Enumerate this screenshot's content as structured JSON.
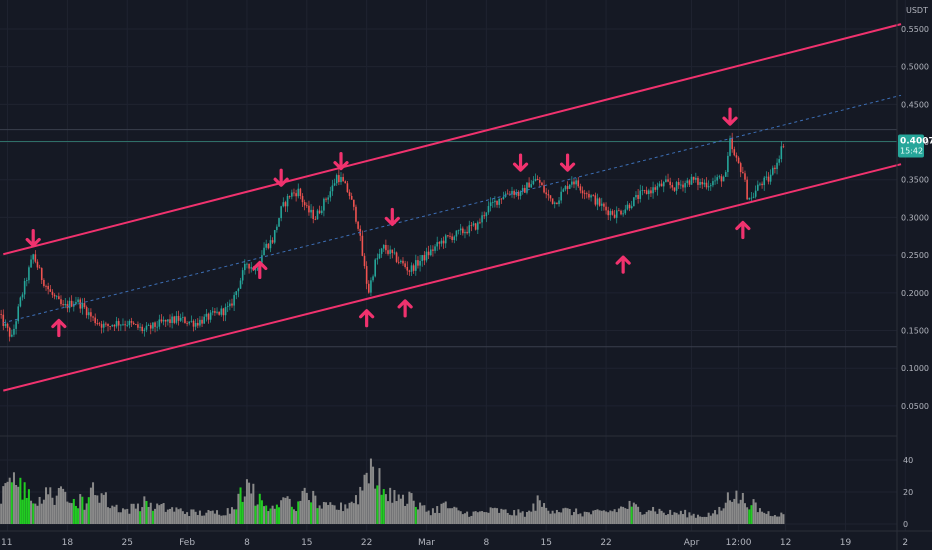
{
  "chart_data": {
    "type": "candlestick",
    "currency": "USDT",
    "y_ticks": [
      "0.5500",
      "0.5000",
      "0.4500",
      "0.4000",
      "0.3500",
      "0.3000",
      "0.2500",
      "0.2000",
      "0.1500",
      "0.1000",
      "0.0500"
    ],
    "y_values": [
      0.55,
      0.5,
      0.45,
      0.4,
      0.35,
      0.3,
      0.25,
      0.2,
      0.15,
      0.1,
      0.05
    ],
    "ylim": [
      0.0,
      0.57
    ],
    "x_ticks": [
      {
        "label": "11",
        "day": 11
      },
      {
        "label": "18",
        "day": 18
      },
      {
        "label": "25",
        "day": 25
      },
      {
        "label": "Feb",
        "day": 32
      },
      {
        "label": "8",
        "day": 39
      },
      {
        "label": "15",
        "day": 46
      },
      {
        "label": "22",
        "day": 53
      },
      {
        "label": "Mar",
        "day": 60
      },
      {
        "label": "8",
        "day": 67
      },
      {
        "label": "15",
        "day": 74
      },
      {
        "label": "22",
        "day": 81
      },
      {
        "label": "Apr",
        "day": 91
      },
      {
        "label": "12:00",
        "day": 96.5
      },
      {
        "label": "12",
        "day": 102
      },
      {
        "label": "19",
        "day": 109
      },
      {
        "label": "2",
        "day": 116
      }
    ],
    "current_price": {
      "label": "0.4007",
      "value": 0.4007,
      "countdown": "15:42"
    },
    "horizontal_levels": [
      0.4164,
      0.1284
    ],
    "channel": {
      "upper": [
        {
          "day": 10.5,
          "value": 0.2512
        },
        {
          "day": 115.5,
          "value": 0.5564
        }
      ],
      "lower": [
        {
          "day": 10.5,
          "value": 0.0703
        },
        {
          "day": 115.5,
          "value": 0.3706
        }
      ],
      "mid": [
        {
          "day": 10.5,
          "value": 0.1602
        },
        {
          "day": 115.5,
          "value": 0.462
        }
      ]
    },
    "price_path": [
      {
        "day": 10.0,
        "value": 0.17
      },
      {
        "day": 11.0,
        "value": 0.15
      },
      {
        "day": 11.5,
        "value": 0.14
      },
      {
        "day": 12.5,
        "value": 0.19
      },
      {
        "day": 14.0,
        "value": 0.25
      },
      {
        "day": 15.0,
        "value": 0.22
      },
      {
        "day": 16.0,
        "value": 0.2
      },
      {
        "day": 17.5,
        "value": 0.18
      },
      {
        "day": 19.0,
        "value": 0.19
      },
      {
        "day": 20.0,
        "value": 0.18
      },
      {
        "day": 21.0,
        "value": 0.165
      },
      {
        "day": 22.5,
        "value": 0.155
      },
      {
        "day": 23.5,
        "value": 0.16
      },
      {
        "day": 25.0,
        "value": 0.16
      },
      {
        "day": 27.0,
        "value": 0.15
      },
      {
        "day": 29.0,
        "value": 0.16
      },
      {
        "day": 31.0,
        "value": 0.165
      },
      {
        "day": 33.0,
        "value": 0.16
      },
      {
        "day": 35.0,
        "value": 0.17
      },
      {
        "day": 37.0,
        "value": 0.18
      },
      {
        "day": 38.0,
        "value": 0.21
      },
      {
        "day": 39.0,
        "value": 0.24
      },
      {
        "day": 40.0,
        "value": 0.23
      },
      {
        "day": 41.0,
        "value": 0.26
      },
      {
        "day": 42.0,
        "value": 0.27
      },
      {
        "day": 43.0,
        "value": 0.31
      },
      {
        "day": 44.0,
        "value": 0.33
      },
      {
        "day": 45.0,
        "value": 0.335
      },
      {
        "day": 46.0,
        "value": 0.31
      },
      {
        "day": 47.0,
        "value": 0.3
      },
      {
        "day": 48.0,
        "value": 0.32
      },
      {
        "day": 49.0,
        "value": 0.34
      },
      {
        "day": 49.5,
        "value": 0.355
      },
      {
        "day": 50.0,
        "value": 0.35
      },
      {
        "day": 51.0,
        "value": 0.33
      },
      {
        "day": 51.5,
        "value": 0.31
      },
      {
        "day": 52.0,
        "value": 0.29
      },
      {
        "day": 52.5,
        "value": 0.25
      },
      {
        "day": 53.2,
        "value": 0.2
      },
      {
        "day": 54.0,
        "value": 0.24
      },
      {
        "day": 55.0,
        "value": 0.26
      },
      {
        "day": 56.0,
        "value": 0.25
      },
      {
        "day": 57.0,
        "value": 0.24
      },
      {
        "day": 58.0,
        "value": 0.23
      },
      {
        "day": 59.0,
        "value": 0.24
      },
      {
        "day": 60.0,
        "value": 0.25
      },
      {
        "day": 61.0,
        "value": 0.26
      },
      {
        "day": 62.0,
        "value": 0.27
      },
      {
        "day": 63.0,
        "value": 0.275
      },
      {
        "day": 64.0,
        "value": 0.28
      },
      {
        "day": 65.0,
        "value": 0.285
      },
      {
        "day": 66.0,
        "value": 0.29
      },
      {
        "day": 67.0,
        "value": 0.31
      },
      {
        "day": 68.0,
        "value": 0.32
      },
      {
        "day": 69.0,
        "value": 0.33
      },
      {
        "day": 70.0,
        "value": 0.335
      },
      {
        "day": 71.0,
        "value": 0.33
      },
      {
        "day": 72.0,
        "value": 0.345
      },
      {
        "day": 73.0,
        "value": 0.35
      },
      {
        "day": 74.0,
        "value": 0.33
      },
      {
        "day": 75.0,
        "value": 0.32
      },
      {
        "day": 76.0,
        "value": 0.335
      },
      {
        "day": 77.0,
        "value": 0.35
      },
      {
        "day": 78.0,
        "value": 0.34
      },
      {
        "day": 79.0,
        "value": 0.33
      },
      {
        "day": 80.0,
        "value": 0.32
      },
      {
        "day": 81.0,
        "value": 0.31
      },
      {
        "day": 82.0,
        "value": 0.305
      },
      {
        "day": 83.0,
        "value": 0.31
      },
      {
        "day": 84.0,
        "value": 0.32
      },
      {
        "day": 85.0,
        "value": 0.33
      },
      {
        "day": 86.0,
        "value": 0.335
      },
      {
        "day": 87.0,
        "value": 0.34
      },
      {
        "day": 88.0,
        "value": 0.345
      },
      {
        "day": 89.0,
        "value": 0.34
      },
      {
        "day": 90.0,
        "value": 0.345
      },
      {
        "day": 91.0,
        "value": 0.35
      },
      {
        "day": 92.0,
        "value": 0.345
      },
      {
        "day": 93.0,
        "value": 0.345
      },
      {
        "day": 94.0,
        "value": 0.35
      },
      {
        "day": 95.0,
        "value": 0.355
      },
      {
        "day": 95.5,
        "value": 0.4
      },
      {
        "day": 96.0,
        "value": 0.38
      },
      {
        "day": 96.5,
        "value": 0.37
      },
      {
        "day": 97.0,
        "value": 0.36
      },
      {
        "day": 97.5,
        "value": 0.33
      },
      {
        "day": 98.0,
        "value": 0.325
      },
      {
        "day": 99.0,
        "value": 0.345
      },
      {
        "day": 100.0,
        "value": 0.35
      },
      {
        "day": 101.0,
        "value": 0.375
      },
      {
        "day": 101.8,
        "value": 0.4
      }
    ],
    "arrows_down": [
      {
        "day": 14.0,
        "value": 0.272
      },
      {
        "day": 43.0,
        "value": 0.352
      },
      {
        "day": 50.0,
        "value": 0.374
      },
      {
        "day": 56.0,
        "value": 0.3
      },
      {
        "day": 71.0,
        "value": 0.372
      },
      {
        "day": 76.5,
        "value": 0.372
      },
      {
        "day": 95.5,
        "value": 0.433
      }
    ],
    "arrows_up": [
      {
        "day": 17.0,
        "value": 0.154
      },
      {
        "day": 40.5,
        "value": 0.231
      },
      {
        "day": 53.0,
        "value": 0.167
      },
      {
        "day": 57.5,
        "value": 0.18
      },
      {
        "day": 83.0,
        "value": 0.238
      },
      {
        "day": 97.0,
        "value": 0.284
      }
    ],
    "volume": {
      "ylim": [
        0,
        50
      ],
      "ticks": [
        "40",
        "20",
        "0"
      ],
      "tick_values": [
        40,
        20,
        0
      ],
      "peaks": [
        {
          "day": 10.0,
          "value": 6
        },
        {
          "day": 11.0,
          "value": 36
        },
        {
          "day": 12.0,
          "value": 30
        },
        {
          "day": 13.0,
          "value": 24
        },
        {
          "day": 14.0,
          "value": 18
        },
        {
          "day": 15.0,
          "value": 20
        },
        {
          "day": 16.0,
          "value": 22
        },
        {
          "day": 17.0,
          "value": 20
        },
        {
          "day": 18.0,
          "value": 24
        },
        {
          "day": 19.0,
          "value": 18
        },
        {
          "day": 20.0,
          "value": 16
        },
        {
          "day": 21.0,
          "value": 26
        },
        {
          "day": 22.0,
          "value": 22
        },
        {
          "day": 23.0,
          "value": 14
        },
        {
          "day": 24.0,
          "value": 12
        },
        {
          "day": 25.0,
          "value": 10
        },
        {
          "day": 27.0,
          "value": 16
        },
        {
          "day": 29.0,
          "value": 12
        },
        {
          "day": 31.0,
          "value": 10
        },
        {
          "day": 33.0,
          "value": 8
        },
        {
          "day": 35.0,
          "value": 8
        },
        {
          "day": 37.0,
          "value": 10
        },
        {
          "day": 38.0,
          "value": 18
        },
        {
          "day": 39.0,
          "value": 30
        },
        {
          "day": 40.0,
          "value": 20
        },
        {
          "day": 41.0,
          "value": 14
        },
        {
          "day": 43.0,
          "value": 16
        },
        {
          "day": 45.0,
          "value": 14
        },
        {
          "day": 46.0,
          "value": 24
        },
        {
          "day": 47.0,
          "value": 18
        },
        {
          "day": 48.0,
          "value": 12
        },
        {
          "day": 50.0,
          "value": 12
        },
        {
          "day": 51.0,
          "value": 16
        },
        {
          "day": 52.0,
          "value": 20
        },
        {
          "day": 52.5,
          "value": 28
        },
        {
          "day": 53.0,
          "value": 40
        },
        {
          "day": 53.5,
          "value": 44
        },
        {
          "day": 54.0,
          "value": 36
        },
        {
          "day": 55.0,
          "value": 26
        },
        {
          "day": 56.0,
          "value": 20
        },
        {
          "day": 57.0,
          "value": 16
        },
        {
          "day": 58.0,
          "value": 22
        },
        {
          "day": 59.0,
          "value": 14
        },
        {
          "day": 60.0,
          "value": 10
        },
        {
          "day": 61.0,
          "value": 10
        },
        {
          "day": 62.0,
          "value": 14
        },
        {
          "day": 64.0,
          "value": 8
        },
        {
          "day": 66.0,
          "value": 8
        },
        {
          "day": 68.0,
          "value": 10
        },
        {
          "day": 70.0,
          "value": 8
        },
        {
          "day": 72.0,
          "value": 8
        },
        {
          "day": 73.0,
          "value": 16
        },
        {
          "day": 74.0,
          "value": 12
        },
        {
          "day": 76.0,
          "value": 10
        },
        {
          "day": 78.0,
          "value": 8
        },
        {
          "day": 80.0,
          "value": 8
        },
        {
          "day": 82.0,
          "value": 10
        },
        {
          "day": 84.0,
          "value": 14
        },
        {
          "day": 85.0,
          "value": 10
        },
        {
          "day": 86.0,
          "value": 12
        },
        {
          "day": 88.0,
          "value": 8
        },
        {
          "day": 90.0,
          "value": 8
        },
        {
          "day": 92.0,
          "value": 6
        },
        {
          "day": 94.0,
          "value": 8
        },
        {
          "day": 95.0,
          "value": 14
        },
        {
          "day": 95.5,
          "value": 24
        },
        {
          "day": 96.0,
          "value": 20
        },
        {
          "day": 97.0,
          "value": 18
        },
        {
          "day": 98.0,
          "value": 16
        },
        {
          "day": 99.0,
          "value": 10
        },
        {
          "day": 100.0,
          "value": 8
        },
        {
          "day": 101.0,
          "value": 8
        },
        {
          "day": 101.8,
          "value": 6
        }
      ]
    },
    "colors": {
      "background": "#151924",
      "grid": "#1f2330",
      "channel": "#f0326e",
      "midline": "#3d6fb6",
      "up_candle": "#26a69a",
      "down_candle": "#ef5350",
      "volume_up": "#22cc22",
      "volume_down": "#8a8a8a",
      "arrow": "#f0326e",
      "current_price": "#26a69a",
      "level": "#2f6f68"
    }
  }
}
